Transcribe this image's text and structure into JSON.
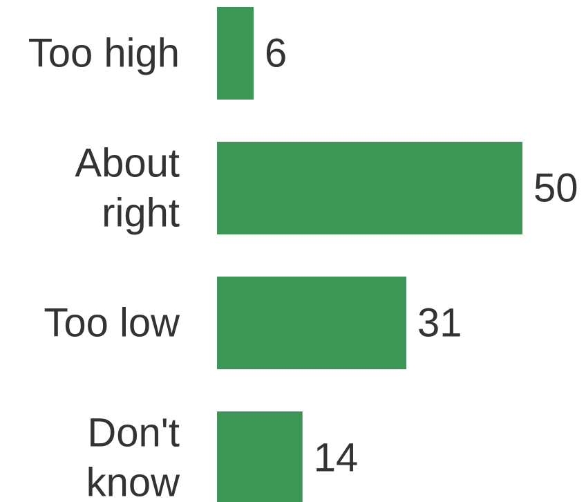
{
  "chart_data": {
    "type": "bar",
    "orientation": "horizontal",
    "categories": [
      "Too high",
      "About right",
      "Too low",
      "Don't know"
    ],
    "category_lines": [
      [
        "Too high"
      ],
      [
        "About",
        "right"
      ],
      [
        "Too low"
      ],
      [
        "Don't",
        "know"
      ]
    ],
    "values": [
      6,
      50,
      31,
      14
    ],
    "data_labels": [
      "6",
      "50",
      "31",
      "14"
    ],
    "title": "",
    "xlabel": "",
    "ylabel": "",
    "xlim": [
      0,
      50
    ],
    "grid": false,
    "legend": "none",
    "bar_color": "#3d9656",
    "text_color": "#333333"
  }
}
